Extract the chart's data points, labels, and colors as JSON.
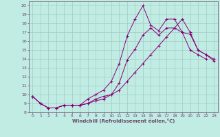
{
  "xlabel": "Windchill (Refroidissement éolien,°C)",
  "bg_color": "#c0ece4",
  "grid_color": "#a0ccc4",
  "line_color": "#880077",
  "spine_color": "#664466",
  "xlim": [
    -0.5,
    23.5
  ],
  "ylim": [
    8.0,
    20.5
  ],
  "xticks": [
    0,
    1,
    2,
    3,
    4,
    5,
    6,
    7,
    8,
    9,
    10,
    11,
    12,
    13,
    14,
    15,
    16,
    17,
    18,
    19,
    20,
    21,
    22,
    23
  ],
  "yticks": [
    8,
    9,
    10,
    11,
    12,
    13,
    14,
    15,
    16,
    17,
    18,
    19,
    20
  ],
  "line1_x": [
    0,
    1,
    2,
    3,
    4,
    5,
    6,
    7,
    8,
    9,
    10,
    11,
    12,
    13,
    14,
    15,
    16,
    17,
    18,
    19,
    20,
    21,
    22,
    23
  ],
  "line1_y": [
    9.8,
    9.0,
    8.5,
    8.5,
    8.8,
    8.8,
    8.8,
    9.0,
    9.5,
    9.8,
    10.0,
    11.3,
    13.9,
    15.1,
    16.7,
    17.5,
    16.7,
    17.5,
    17.5,
    17.0,
    16.8,
    15.0,
    14.5,
    14.0
  ],
  "line2_x": [
    0,
    1,
    2,
    3,
    4,
    5,
    6,
    7,
    8,
    9,
    10,
    11,
    12,
    13,
    14,
    15,
    16,
    17,
    18,
    19,
    20,
    21,
    22,
    23
  ],
  "line2_y": [
    9.8,
    9.0,
    8.5,
    8.5,
    8.8,
    8.8,
    8.8,
    9.5,
    10.0,
    10.5,
    11.5,
    13.5,
    16.6,
    18.5,
    20.0,
    17.8,
    17.2,
    18.5,
    18.5,
    17.0,
    15.0,
    14.5,
    14.0,
    null
  ],
  "line3_x": [
    0,
    1,
    2,
    3,
    4,
    5,
    6,
    7,
    8,
    9,
    10,
    11,
    12,
    13,
    14,
    15,
    16,
    17,
    18,
    19,
    20,
    21,
    22,
    23
  ],
  "line3_y": [
    9.8,
    9.0,
    8.5,
    8.5,
    8.8,
    8.8,
    8.8,
    9.0,
    9.3,
    9.5,
    10.0,
    10.5,
    11.5,
    12.5,
    13.5,
    14.5,
    15.5,
    16.5,
    17.5,
    18.5,
    17.0,
    15.0,
    14.5,
    13.8
  ]
}
